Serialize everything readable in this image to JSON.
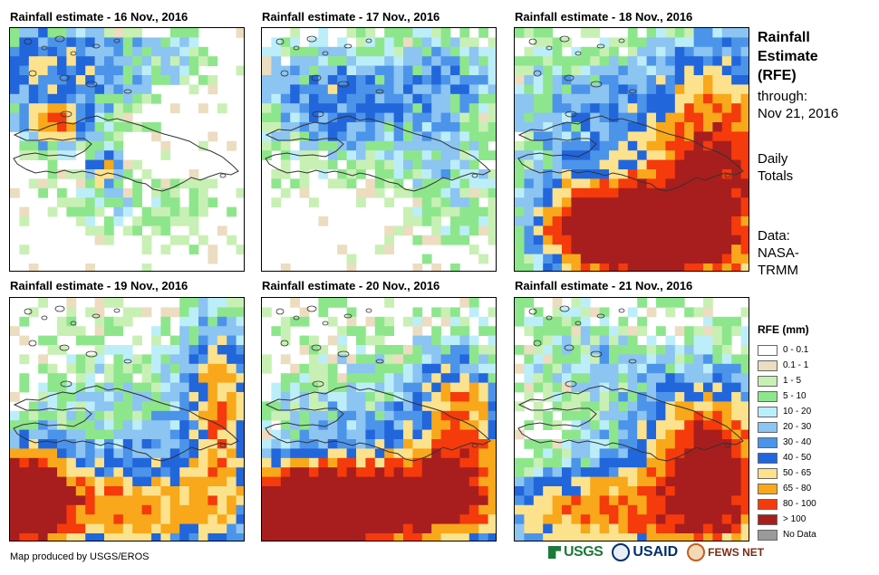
{
  "panels": [
    {
      "title": "Rainfall estimate - 16 Nov., 2016",
      "pattern": "north_west"
    },
    {
      "title": "Rainfall estimate - 17 Nov., 2016",
      "pattern": "north_scattered"
    },
    {
      "title": "Rainfall estimate - 18 Nov., 2016",
      "pattern": "east_heavy"
    },
    {
      "title": "Rainfall estimate - 19 Nov., 2016",
      "pattern": "south_west_heavy"
    },
    {
      "title": "Rainfall estimate - 20 Nov., 2016",
      "pattern": "south_heavy"
    },
    {
      "title": "Rainfall estimate - 21 Nov., 2016",
      "pattern": "south_east"
    }
  ],
  "side": {
    "title_line1": "Rainfall",
    "title_line2": "Estimate",
    "title_line3": "(RFE)",
    "through_label": "through:",
    "through_date": "Nov 21, 2016",
    "totals_line1": "Daily",
    "totals_line2": "Totals",
    "data_line1": "Data:",
    "data_line2": "NASA-",
    "data_line3": "TRMM"
  },
  "legend": {
    "title": "RFE (mm)",
    "items": [
      {
        "label": "0 - 0.1",
        "color": "#ffffff"
      },
      {
        "label": "0.1 - 1",
        "color": "#ecdcc0"
      },
      {
        "label": "1 - 5",
        "color": "#c8f0b4"
      },
      {
        "label": "5 - 10",
        "color": "#8ee68c"
      },
      {
        "label": "10 - 20",
        "color": "#bceefa"
      },
      {
        "label": "20 - 30",
        "color": "#8cc4f2"
      },
      {
        "label": "30 - 40",
        "color": "#4c94ea"
      },
      {
        "label": "40 - 50",
        "color": "#2266dc"
      },
      {
        "label": "50 - 65",
        "color": "#fce28c"
      },
      {
        "label": "65 - 80",
        "color": "#f8a81a"
      },
      {
        "label": "80 - 100",
        "color": "#f53a0c"
      },
      {
        "label": "> 100",
        "color": "#a81e1e"
      },
      {
        "label": "No Data",
        "color": "#9a9a9a"
      }
    ]
  },
  "footer": {
    "credit": "Map produced by USGS/EROS",
    "logo_usgs": "USGS",
    "logo_usaid": "USAID",
    "logo_fews": "FEWS NET"
  }
}
